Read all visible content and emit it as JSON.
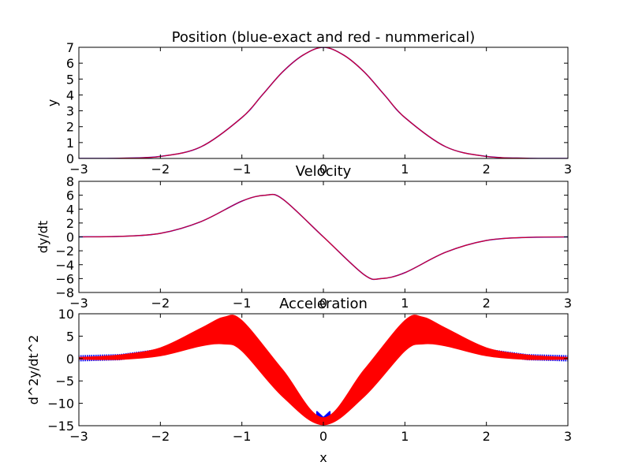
{
  "chart_data": [
    {
      "type": "line",
      "title": "Position (blue-exact and red - nummerical)",
      "xlabel": "",
      "ylabel": "y",
      "xlim": [
        -3,
        3
      ],
      "ylim": [
        0,
        7
      ],
      "xticks": [
        "−3",
        "−2",
        "−1",
        "0",
        "1",
        "2",
        "3"
      ],
      "yticks": [
        "0",
        "1",
        "2",
        "3",
        "4",
        "5",
        "6",
        "7"
      ],
      "colors": {
        "exact": "#0000ff",
        "numerical": "#ff0000"
      },
      "series": [
        {
          "values_x": [
            -3,
            -2.5,
            -2,
            -1.5,
            -1,
            -0.75,
            -0.5,
            -0.25,
            0,
            0.25,
            0.5,
            0.75,
            1,
            1.5,
            2,
            2.5,
            3
          ],
          "values_y": [
            0.0009,
            0.014,
            0.128,
            0.738,
            2.575,
            3.997,
            5.451,
            6.507,
            7.0,
            6.507,
            5.451,
            3.997,
            2.575,
            0.738,
            0.128,
            0.014,
            0.0009
          ]
        }
      ],
      "grid": false
    },
    {
      "type": "line",
      "title": "Velocity",
      "xlabel": "",
      "ylabel": "dy/dt",
      "xlim": [
        -3,
        3
      ],
      "ylim": [
        -8,
        8
      ],
      "xticks": [
        "−3",
        "−2",
        "−1",
        "0",
        "1",
        "2",
        "3"
      ],
      "yticks": [
        "−8",
        "−6",
        "−4",
        "−2",
        "0",
        "2",
        "4",
        "6",
        "8"
      ],
      "colors": {
        "exact": "#0000ff",
        "numerical": "#ff0000"
      },
      "series": [
        {
          "values_x": [
            -3,
            -2.5,
            -2,
            -1.5,
            -1,
            -0.71,
            -0.5,
            0,
            0.5,
            0.71,
            1,
            1.5,
            2,
            2.5,
            3
          ],
          "values_y": [
            0.005,
            0.07,
            0.51,
            2.21,
            5.15,
            6.0,
            5.45,
            0,
            -5.45,
            -6.0,
            -5.15,
            -2.21,
            -0.51,
            -0.07,
            -0.005
          ]
        }
      ],
      "grid": false
    },
    {
      "type": "area",
      "title": "Acceleration",
      "xlabel": "x",
      "ylabel": "d^2y/dt^2",
      "xlim": [
        -3,
        3
      ],
      "ylim": [
        -15,
        10
      ],
      "xticks": [
        "−3",
        "−2",
        "−1",
        "0",
        "1",
        "2",
        "3"
      ],
      "yticks": [
        "−15",
        "−10",
        "−5",
        "0",
        "5",
        "10"
      ],
      "colors": {
        "exact": "#0000ff",
        "numerical": "#ff0000"
      },
      "series": [
        {
          "values_x": [
            -3,
            -2.5,
            -2,
            -1.5,
            -1.22,
            -1,
            -0.5,
            0,
            0.5,
            1,
            1.22,
            1.5,
            2,
            2.5,
            3
          ],
          "values_y": [
            0.05,
            0.3,
            1.5,
            4.8,
            6.25,
            5.1,
            -5.5,
            -14,
            -5.5,
            5.1,
            6.25,
            4.8,
            1.5,
            0.3,
            0.05
          ],
          "band_halfwidth": [
            0.2,
            0.5,
            0.9,
            2.0,
            3.0,
            3.4,
            3.0,
            0.8,
            3.0,
            3.4,
            3.0,
            2.0,
            0.9,
            0.5,
            0.2
          ]
        }
      ],
      "grid": false
    }
  ]
}
